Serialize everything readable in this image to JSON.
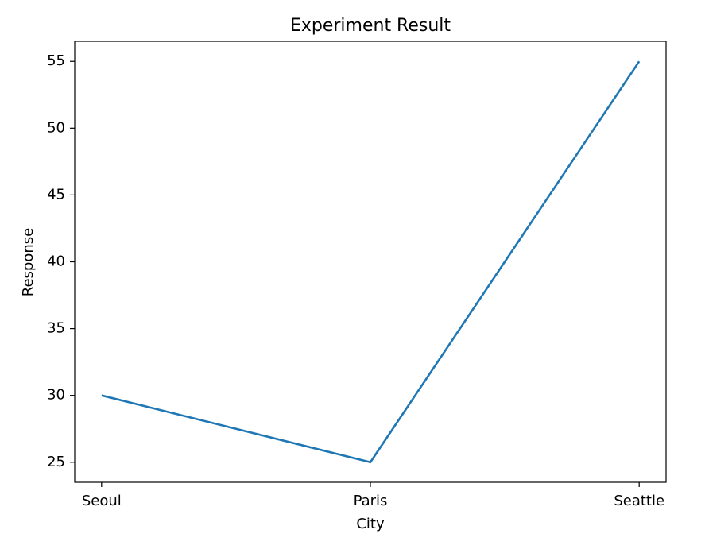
{
  "chart_data": {
    "type": "line",
    "title": "Experiment Result",
    "x_label": "City",
    "y_label": "Response",
    "categories": [
      "Seoul",
      "Paris",
      "Seattle"
    ],
    "series": [
      {
        "name": "Response",
        "color": "#1f77b4",
        "values": [
          30,
          25,
          55
        ]
      }
    ],
    "ylim": [
      23.5,
      56.5
    ],
    "yticks": [
      25,
      30,
      35,
      40,
      45,
      50,
      55
    ],
    "grid": false
  }
}
